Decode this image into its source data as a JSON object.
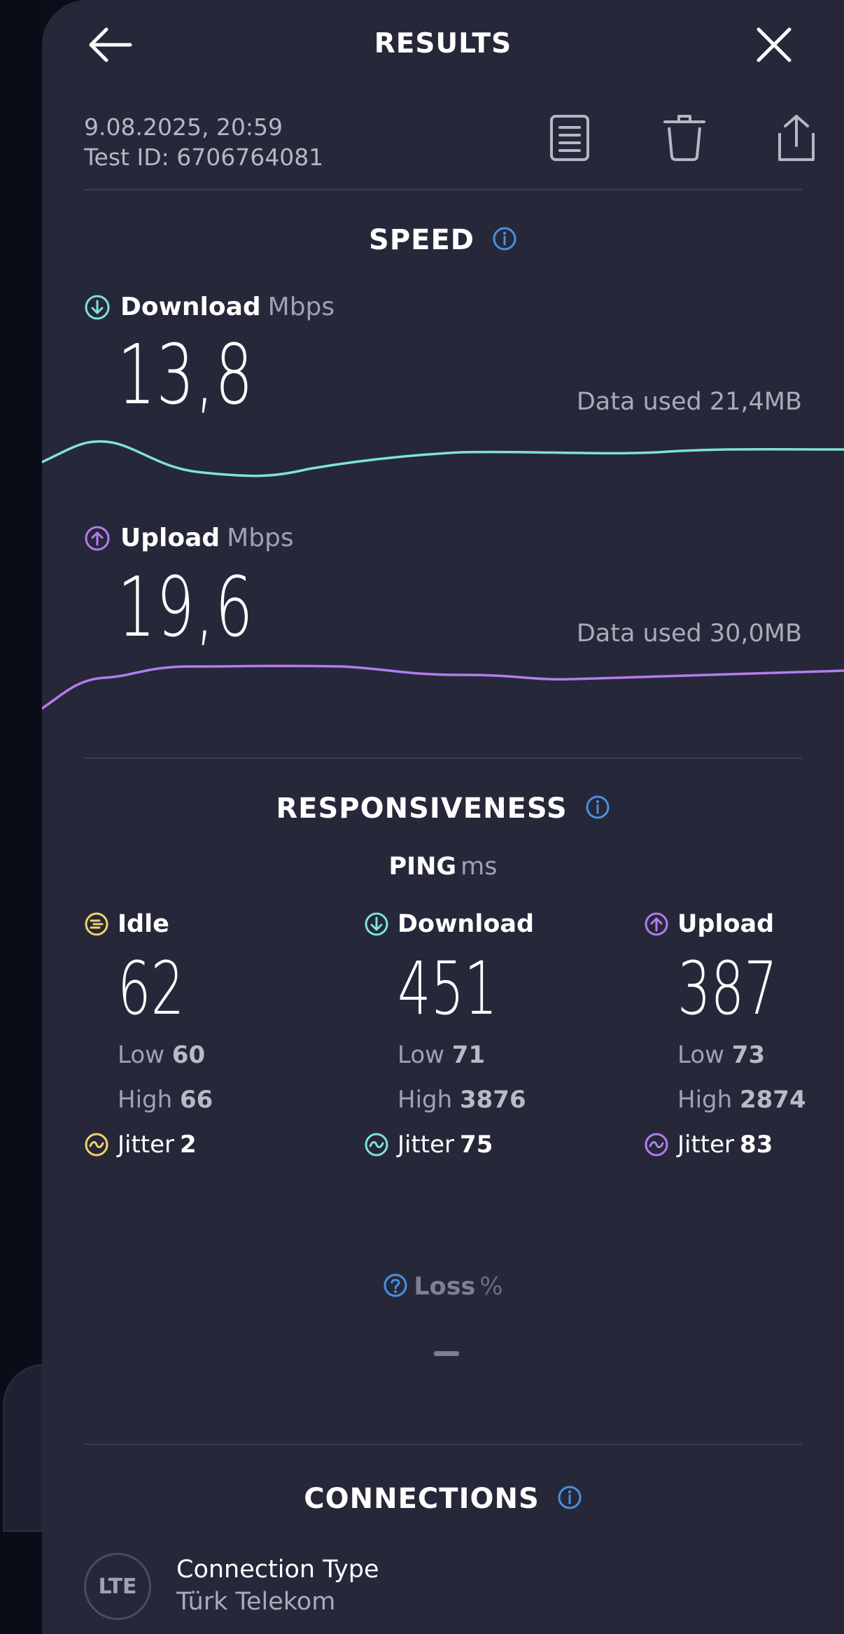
{
  "header": {
    "title": "RESULTS",
    "back_icon": "arrow-left-icon",
    "close_icon": "close-icon"
  },
  "meta": {
    "date": "9.08.2025, 20:59",
    "test_id": "Test ID: 6706764081"
  },
  "toolbar": {
    "results_icon": "document-icon",
    "delete_icon": "trash-icon",
    "share_icon": "share-icon"
  },
  "speed": {
    "title": "SPEED",
    "download": {
      "label": "Download",
      "unit": "Mbps",
      "value": "13,8",
      "data_used": "Data used 21,4MB",
      "color": "#7fe3d6"
    },
    "upload": {
      "label": "Upload",
      "unit": "Mbps",
      "value": "19,6",
      "data_used": "Data used 30,0MB",
      "color": "#b47cf0"
    }
  },
  "responsiveness": {
    "title": "RESPONSIVENESS",
    "ping_label": "PING",
    "ping_unit": "ms",
    "idle": {
      "label": "Idle",
      "value": "62",
      "low_label": "Low",
      "low": "60",
      "high_label": "High",
      "high": "66",
      "jitter_label": "Jitter",
      "jitter": "2",
      "color": "#f2d36b"
    },
    "download": {
      "label": "Download",
      "value": "451",
      "low_label": "Low",
      "low": "71",
      "high_label": "High",
      "high": "3876",
      "jitter_label": "Jitter",
      "jitter": "75",
      "color": "#7fe3d6"
    },
    "upload": {
      "label": "Upload",
      "value": "387",
      "low_label": "Low",
      "low": "73",
      "high_label": "High",
      "high": "2874",
      "jitter_label": "Jitter",
      "jitter": "83",
      "color": "#b47cf0"
    },
    "loss_label": "Loss",
    "loss_unit": "%"
  },
  "connections": {
    "title": "CONNECTIONS",
    "badge": "LTE",
    "type_label": "Connection Type",
    "type_value": "Türk Telekom"
  }
}
